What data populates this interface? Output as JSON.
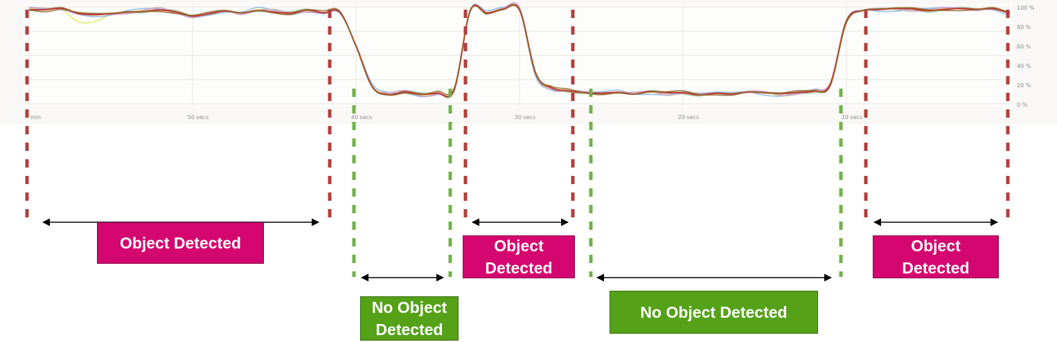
{
  "chart_data": {
    "type": "line",
    "title": "",
    "xlabel": "",
    "ylabel": "",
    "x_ticks": [
      "min",
      "50 secs",
      "40 secs",
      "30 secs",
      "20 secs",
      "10 secs"
    ],
    "x_tick_seconds": [
      60,
      50,
      40,
      30,
      20,
      10
    ],
    "y_ticks": [
      "100 %",
      "80 %",
      "60 %",
      "40 %",
      "20 %",
      "0 %"
    ],
    "ylim": [
      0,
      100
    ],
    "xlim_seconds_ago": [
      60,
      0
    ],
    "grid": true,
    "legend": "none",
    "series_colors": [
      "#f2c14e",
      "#e4e85a",
      "#9bd4a1",
      "#8ab6e8",
      "#c9a0dc",
      "#c0392b",
      "#8e6b2d"
    ],
    "x": [
      60,
      59,
      58,
      57,
      56,
      55,
      54,
      53,
      52,
      51,
      50,
      49,
      48,
      47,
      46,
      45,
      44,
      43,
      42,
      41,
      40,
      39,
      38,
      37,
      36,
      35,
      34,
      33,
      32,
      31,
      30,
      29,
      28,
      27,
      26,
      25,
      24,
      23,
      22,
      21,
      20,
      19,
      18,
      17,
      16,
      15,
      14,
      13,
      12,
      11,
      10,
      9,
      8,
      7,
      6,
      5,
      4,
      3,
      2,
      1,
      0
    ],
    "values": [
      98,
      97,
      98,
      93,
      92,
      93,
      95,
      96,
      97,
      94,
      90,
      93,
      96,
      94,
      97,
      95,
      93,
      96,
      94,
      95,
      60,
      18,
      10,
      12,
      9,
      11,
      15,
      97,
      94,
      98,
      97,
      30,
      16,
      14,
      12,
      11,
      12,
      10,
      12,
      11,
      12,
      10,
      11,
      10,
      12,
      11,
      10,
      12,
      14,
      20,
      85,
      96,
      97,
      98,
      98,
      97,
      98,
      98,
      97,
      98,
      93
    ],
    "bands": [
      {
        "label": "Object Detected",
        "from": 60,
        "to": 42
      },
      {
        "label": "No Object Detected",
        "from": 40,
        "to": 34
      },
      {
        "label": "Object\nDetected",
        "from": 33,
        "to": 27
      },
      {
        "label": "No Object Detected",
        "from": 26,
        "to": 10
      },
      {
        "label": "Object\nDetected",
        "from": 9,
        "to": 0
      }
    ],
    "colors": {
      "detected": "#d4066f",
      "not_detected": "#55a118",
      "detected_boundary": "#b0403e",
      "not_detected_boundary": "#73b04a"
    }
  }
}
